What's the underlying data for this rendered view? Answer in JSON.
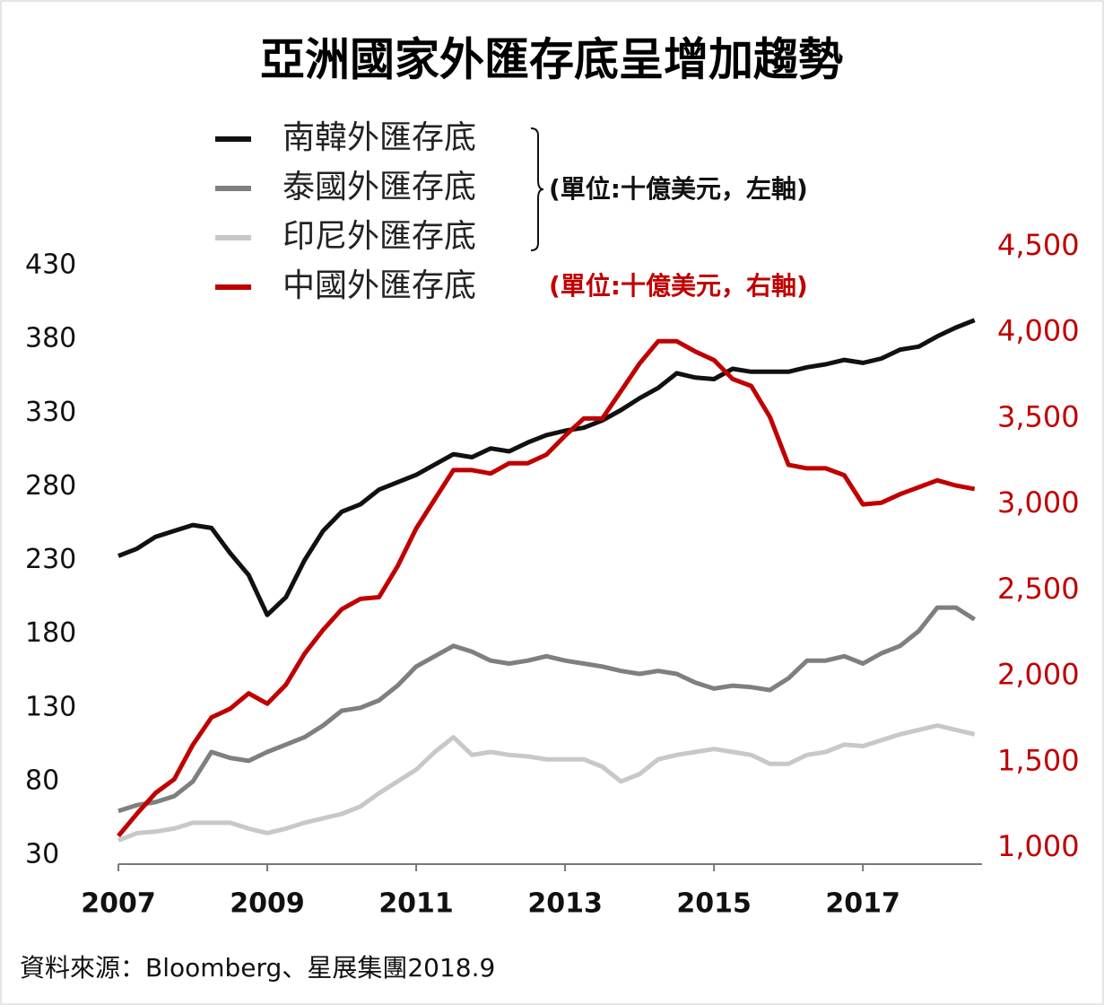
{
  "chart_data": {
    "type": "line",
    "title": "亞洲國家外匯存底呈增加趨勢",
    "x": [
      2007,
      2007.25,
      2007.5,
      2007.75,
      2008,
      2008.25,
      2008.5,
      2008.75,
      2009,
      2009.25,
      2009.5,
      2009.75,
      2010,
      2010.25,
      2010.5,
      2010.75,
      2011,
      2011.25,
      2011.5,
      2011.75,
      2012,
      2012.25,
      2012.5,
      2012.75,
      2013,
      2013.25,
      2013.5,
      2013.75,
      2014,
      2014.25,
      2014.5,
      2014.75,
      2015,
      2015.25,
      2015.5,
      2015.75,
      2016,
      2016.25,
      2016.5,
      2016.75,
      2017,
      2017.25,
      2017.5,
      2017.75,
      2018,
      2018.25,
      2018.5
    ],
    "series": [
      {
        "name": "南韓外匯存底",
        "color": "#111111",
        "axis": "y",
        "values": [
          233,
          238,
          246,
          250,
          254,
          252,
          235,
          220,
          193,
          205,
          230,
          250,
          263,
          268,
          278,
          283,
          288,
          295,
          302,
          300,
          306,
          304,
          310,
          315,
          318,
          320,
          325,
          332,
          340,
          347,
          357,
          354,
          353,
          360,
          358,
          358,
          358,
          361,
          363,
          366,
          364,
          367,
          373,
          375,
          382,
          388,
          393
        ]
      },
      {
        "name": "泰國外匯存底",
        "color": "#7f7f7f",
        "axis": "y",
        "values": [
          60,
          64,
          66,
          70,
          80,
          100,
          96,
          94,
          100,
          105,
          110,
          118,
          128,
          130,
          135,
          145,
          158,
          165,
          172,
          168,
          162,
          160,
          162,
          165,
          162,
          160,
          158,
          155,
          153,
          155,
          153,
          147,
          143,
          145,
          144,
          142,
          150,
          162,
          162,
          165,
          160,
          167,
          172,
          182,
          198,
          198,
          190
        ]
      },
      {
        "name": "印尼外匯存底",
        "color": "#c8c8c8",
        "axis": "y",
        "values": [
          40,
          45,
          46,
          48,
          52,
          52,
          52,
          48,
          45,
          48,
          52,
          55,
          58,
          63,
          72,
          80,
          88,
          100,
          110,
          98,
          100,
          98,
          97,
          95,
          95,
          95,
          90,
          80,
          85,
          95,
          98,
          100,
          102,
          100,
          98,
          92,
          92,
          98,
          100,
          105,
          104,
          108,
          112,
          115,
          118,
          115,
          112
        ]
      },
      {
        "name": "中國外匯存底",
        "color": "#c00000",
        "axis": "y2",
        "values": [
          1070,
          1200,
          1320,
          1400,
          1600,
          1760,
          1810,
          1900,
          1840,
          1950,
          2130,
          2270,
          2390,
          2450,
          2460,
          2640,
          2860,
          3030,
          3200,
          3200,
          3180,
          3240,
          3240,
          3290,
          3400,
          3500,
          3500,
          3660,
          3820,
          3950,
          3950,
          3890,
          3840,
          3730,
          3690,
          3510,
          3230,
          3210,
          3210,
          3170,
          3000,
          3010,
          3060,
          3100,
          3140,
          3110,
          3090
        ]
      }
    ],
    "annotations": [
      "(單位:十億美元，左軸)",
      "(單位:十億美元，右軸)"
    ],
    "source": "資料來源：Bloomberg、星展集團2018.9",
    "xlim": [
      2007,
      2018.6
    ],
    "xticks": [
      2007,
      2009,
      2011,
      2013,
      2015,
      2017
    ],
    "ylim": [
      30,
      430
    ],
    "yticks": [
      30,
      80,
      130,
      180,
      230,
      280,
      330,
      380,
      430
    ],
    "y2lim": [
      1000,
      4500
    ],
    "y2ticks": [
      {
        "value": 1000,
        "label": "1,000"
      },
      {
        "value": 1500,
        "label": "1,500"
      },
      {
        "value": 2000,
        "label": "2,000"
      },
      {
        "value": 2500,
        "label": "2,500"
      },
      {
        "value": 3000,
        "label": "3,000"
      },
      {
        "value": 3500,
        "label": "3,500"
      },
      {
        "value": 4000,
        "label": "4,000"
      },
      {
        "value": 4500,
        "label": "4,500"
      }
    ]
  }
}
